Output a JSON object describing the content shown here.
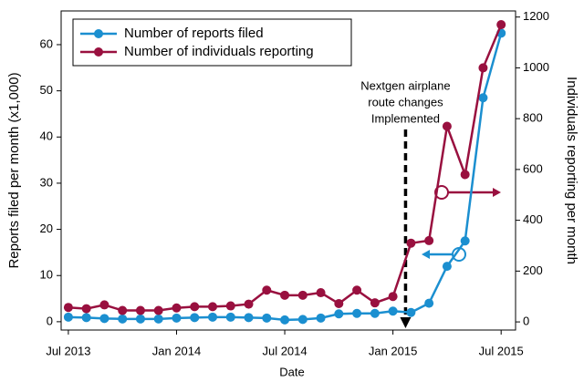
{
  "chart_data": {
    "type": "line",
    "x": [
      0,
      1,
      2,
      3,
      4,
      5,
      6,
      7,
      8,
      9,
      10,
      11,
      12,
      13,
      14,
      15,
      16,
      17,
      18,
      19,
      20,
      21,
      22,
      23,
      24
    ],
    "xlim": [
      -0.4,
      24.8
    ],
    "xticks": [
      {
        "value": 0,
        "label": "Jul 2013"
      },
      {
        "value": 6,
        "label": "Jan 2014"
      },
      {
        "value": 12,
        "label": "Jul 2014"
      },
      {
        "value": 18,
        "label": "Jan 2015"
      },
      {
        "value": 24,
        "label": "Jul 2015"
      }
    ],
    "xlabel": "Date",
    "ylabel": "Reports filed per month (x1,000)",
    "y2label": "Individuals reporting per month",
    "ylim": [
      -1.8,
      67.3
    ],
    "yticks": [
      0,
      10,
      20,
      30,
      40,
      50,
      60
    ],
    "y2lim": [
      -32,
      1224
    ],
    "y2ticks": [
      0,
      200,
      400,
      600,
      800,
      1000,
      1200
    ],
    "legend": "upper left",
    "series": [
      {
        "name": "Number of reports filed",
        "color": "#1b8fd0",
        "values": [
          1.0,
          0.9,
          0.7,
          0.6,
          0.6,
          0.6,
          0.8,
          0.9,
          1.0,
          1.0,
          0.9,
          0.8,
          0.4,
          0.5,
          0.8,
          1.7,
          1.8,
          1.8,
          2.3,
          2.0,
          4.0,
          12,
          17.5,
          48.5,
          62.5
        ]
      },
      {
        "name": "Number of individuals reporting",
        "color": "#99103f",
        "axis": "y2",
        "values": [
          57,
          52,
          67,
          45,
          45,
          45,
          55,
          60,
          60,
          63,
          70,
          125,
          105,
          105,
          115,
          72,
          125,
          75,
          100,
          310,
          320,
          770,
          580,
          1000,
          1170
        ]
      }
    ],
    "annotation": {
      "text": [
        "Nextgen airplane",
        "route changes",
        "Implemented"
      ],
      "x": 18.7
    }
  }
}
